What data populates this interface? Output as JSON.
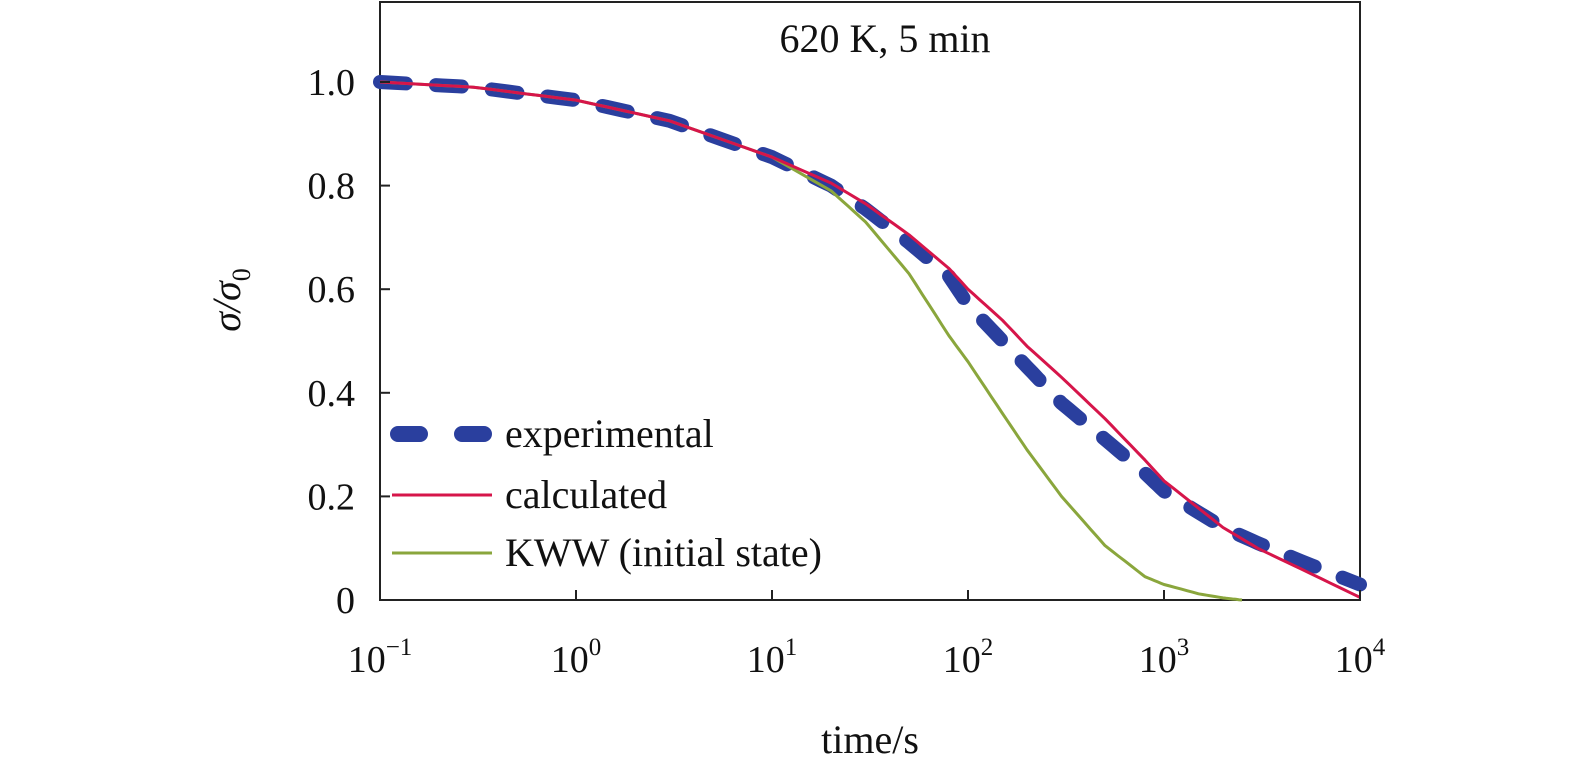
{
  "chart_data": {
    "type": "line",
    "title": "620 K, 5 min",
    "xlabel": "time/s",
    "ylabel": {
      "base": "σ/σ",
      "sub": "0"
    },
    "x_scale": "log",
    "xlim": [
      0.1,
      10000
    ],
    "ylim": [
      0,
      1.15
    ],
    "x_ticks": [
      {
        "base": "10",
        "exp": "−1",
        "value": 0.1
      },
      {
        "base": "10",
        "exp": "0",
        "value": 1
      },
      {
        "base": "10",
        "exp": "1",
        "value": 10
      },
      {
        "base": "10",
        "exp": "2",
        "value": 100
      },
      {
        "base": "10",
        "exp": "3",
        "value": 1000
      },
      {
        "base": "10",
        "exp": "4",
        "value": 10000
      }
    ],
    "y_ticks": [
      {
        "label": "0",
        "value": 0
      },
      {
        "label": "0.2",
        "value": 0.2
      },
      {
        "label": "0.4",
        "value": 0.4
      },
      {
        "label": "0.6",
        "value": 0.6
      },
      {
        "label": "0.8",
        "value": 0.8
      },
      {
        "label": "1.0",
        "value": 1.0
      }
    ],
    "grid": false,
    "legend_position": "bottom-left",
    "series": [
      {
        "name": "experimental",
        "color": "#2a3f9e",
        "style": "dashed",
        "x": [
          0.1,
          0.3,
          1,
          3,
          10,
          20,
          30,
          50,
          80,
          100,
          150,
          200,
          300,
          500,
          800,
          1000,
          2000,
          3000,
          5000,
          10000
        ],
        "y": [
          1.0,
          0.99,
          0.965,
          0.925,
          0.855,
          0.8,
          0.755,
          0.69,
          0.625,
          0.57,
          0.5,
          0.45,
          0.38,
          0.31,
          0.245,
          0.21,
          0.14,
          0.11,
          0.075,
          0.03
        ]
      },
      {
        "name": "calculated",
        "color": "#d6154a",
        "style": "solid",
        "x": [
          0.1,
          0.3,
          1,
          3,
          10,
          20,
          30,
          50,
          80,
          100,
          150,
          200,
          300,
          500,
          800,
          1000,
          2000,
          3000,
          5000,
          10000
        ],
        "y": [
          1.0,
          0.99,
          0.965,
          0.925,
          0.855,
          0.805,
          0.765,
          0.705,
          0.64,
          0.6,
          0.54,
          0.49,
          0.43,
          0.35,
          0.27,
          0.23,
          0.14,
          0.1,
          0.06,
          0.005
        ]
      },
      {
        "name": "KWW (initial state)",
        "color": "#8aa63c",
        "style": "solid",
        "x": [
          0.1,
          0.3,
          1,
          3,
          10,
          20,
          30,
          50,
          80,
          100,
          150,
          200,
          300,
          500,
          800,
          1000,
          1500,
          2000,
          2500
        ],
        "y": [
          1.0,
          0.99,
          0.965,
          0.925,
          0.855,
          0.79,
          0.73,
          0.63,
          0.51,
          0.46,
          0.36,
          0.29,
          0.2,
          0.105,
          0.045,
          0.03,
          0.012,
          0.004,
          0.0
        ]
      }
    ]
  }
}
